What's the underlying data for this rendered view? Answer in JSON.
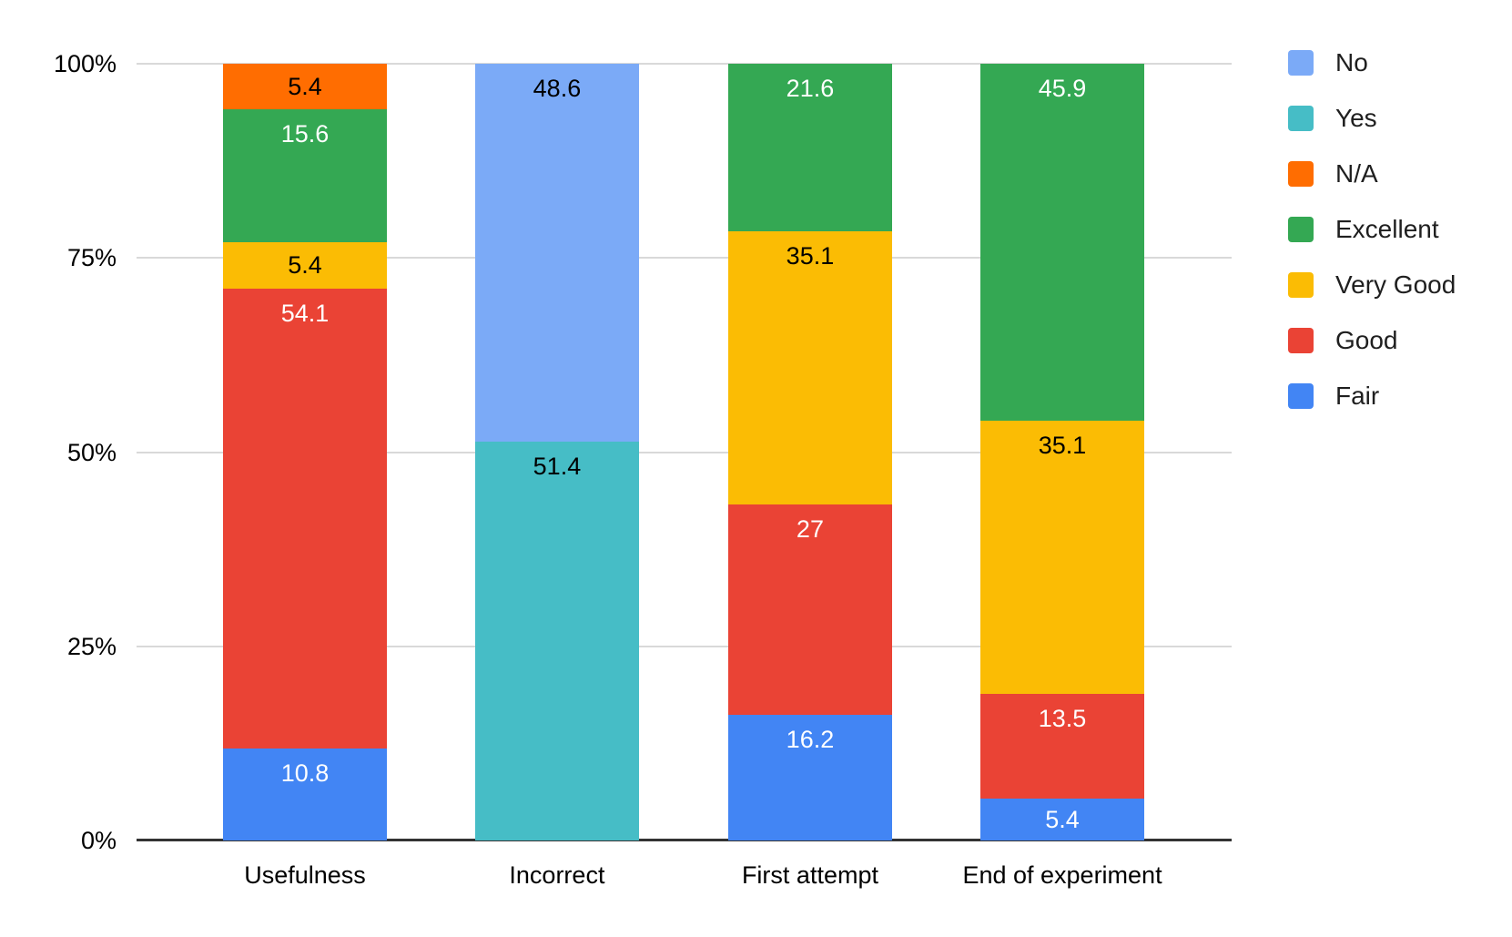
{
  "chart_data": {
    "type": "bar",
    "variant": "stacked-100-percent-column",
    "title": "",
    "categories": [
      "Usefulness",
      "Incorrect",
      "First attempt",
      "End of experiment"
    ],
    "series": [
      {
        "name": "No",
        "color": "#7baaf7",
        "label_color": "#000000",
        "values": [
          null,
          48.6,
          null,
          null
        ]
      },
      {
        "name": "Yes",
        "color": "#46bdc6",
        "label_color": "#000000",
        "values": [
          null,
          51.4,
          null,
          null
        ]
      },
      {
        "name": "N/A",
        "color": "#ff6d01",
        "label_color": "#000000",
        "values": [
          5.4,
          null,
          null,
          null
        ]
      },
      {
        "name": "Excellent",
        "color": "#34a853",
        "label_color": "#ffffff",
        "values": [
          15.6,
          null,
          21.6,
          45.9
        ]
      },
      {
        "name": "Very Good",
        "color": "#fbbc04",
        "label_color": "#000000",
        "values": [
          5.4,
          null,
          35.1,
          35.1
        ]
      },
      {
        "name": "Good",
        "color": "#ea4335",
        "label_color": "#ffffff",
        "values": [
          54.1,
          null,
          27,
          13.5
        ]
      },
      {
        "name": "Fair",
        "color": "#4285f4",
        "label_color": "#ffffff",
        "values": [
          10.8,
          null,
          16.2,
          5.4
        ]
      }
    ],
    "stack_order": "reverse-of-legend",
    "y_axis": {
      "range": [
        0,
        100
      ],
      "gridlines": true,
      "ticks": [
        {
          "label": "0%",
          "value": 0
        },
        {
          "label": "25%",
          "value": 25
        },
        {
          "label": "50%",
          "value": 50
        },
        {
          "label": "75%",
          "value": 75
        },
        {
          "label": "100%",
          "value": 100
        }
      ]
    },
    "x_axis": {
      "label": ""
    },
    "legend": {
      "position": "right"
    }
  },
  "colors": {
    "background": "#ffffff",
    "gridline": "#d9d9d9",
    "axis_line": "#333333",
    "axis_text": "#000000",
    "legend_text": "#1f1f1f"
  }
}
